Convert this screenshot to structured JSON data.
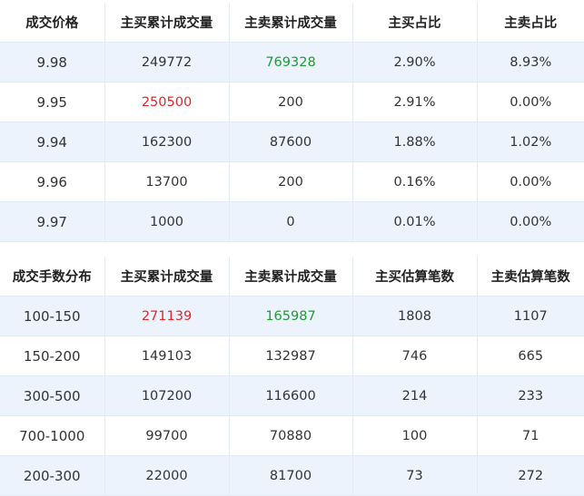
{
  "price_table": {
    "headers": [
      "成交价格",
      "主买累计成交量",
      "主卖累计成交量",
      "主买占比",
      "主卖占比"
    ],
    "rows": [
      [
        "9.98",
        "249772",
        "769328",
        "2.90%",
        "8.93%"
      ],
      [
        "9.95",
        "250500",
        "200",
        "2.91%",
        "0.00%"
      ],
      [
        "9.94",
        "162300",
        "87600",
        "1.88%",
        "1.02%"
      ],
      [
        "9.96",
        "13700",
        "200",
        "0.16%",
        "0.00%"
      ],
      [
        "9.97",
        "1000",
        "0",
        "0.01%",
        "0.00%"
      ]
    ]
  },
  "lot_table": {
    "headers": [
      "成交手数分布",
      "主买累计成交量",
      "主卖累计成交量",
      "主买估算笔数",
      "主卖估算笔数"
    ],
    "rows": [
      [
        "100-150",
        "271139",
        "165987",
        "1808",
        "1107"
      ],
      [
        "150-200",
        "149103",
        "132987",
        "746",
        "665"
      ],
      [
        "300-500",
        "107200",
        "116600",
        "214",
        "233"
      ],
      [
        "700-1000",
        "99700",
        "70880",
        "100",
        "71"
      ],
      [
        "200-300",
        "22000",
        "81700",
        "73",
        "272"
      ]
    ]
  },
  "colors": {
    "highlight_red": "#e0262b",
    "highlight_green": "#1e9b32",
    "row_stripe": "#edf3fc"
  }
}
